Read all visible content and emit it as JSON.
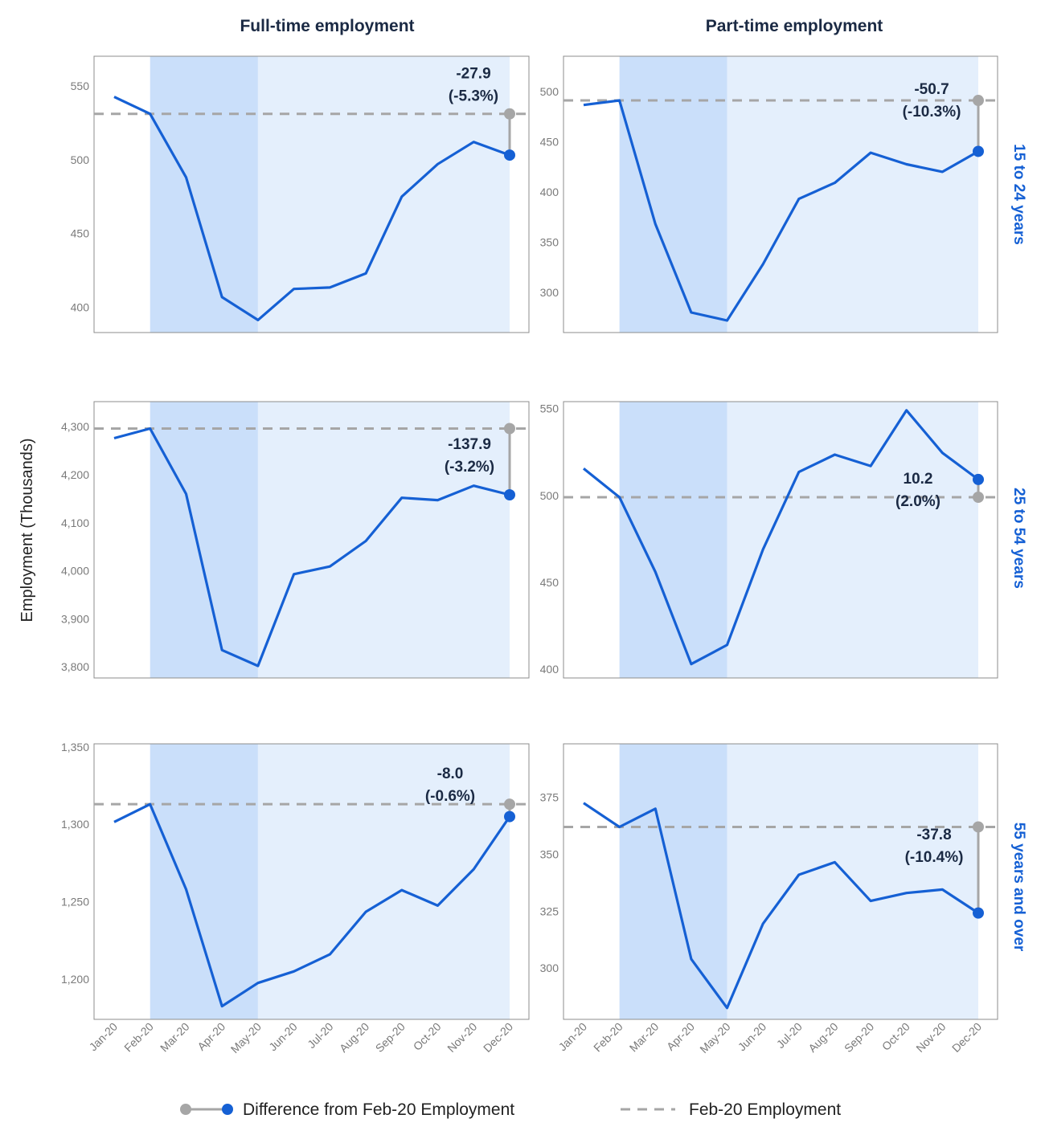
{
  "colors": {
    "line": "#1560d4",
    "shade_dark": "#cadffa",
    "shade_light": "#e4effc",
    "baseline": "#a6a6a6",
    "grey_dot": "#a6a6a6",
    "title": "#1b2a44",
    "row_title": "#1560d4"
  },
  "layout_text": {
    "ylabel": "Employment (Thousands)",
    "col_titles": [
      "Full-time employment",
      "Part-time employment"
    ],
    "row_titles": [
      "15 to 24 years",
      "25 to 54 years",
      "55 years and over"
    ]
  },
  "legend": {
    "diff_label": "Difference from Feb-20 Employment",
    "base_label": "Feb-20 Employment"
  },
  "chart_data": [
    {
      "type": "line",
      "panel": "Full-time employment / 15 to 24 years",
      "x": [
        "Jan-20",
        "Feb-20",
        "Mar-20",
        "Apr-20",
        "May-20",
        "Jun-20",
        "Jul-20",
        "Aug-20",
        "Sep-20",
        "Oct-20",
        "Nov-20",
        "Dec-20"
      ],
      "values": [
        542.5,
        531.0,
        488.0,
        407.0,
        391.5,
        412.5,
        413.5,
        423.0,
        475.0,
        497.0,
        512.0,
        503.1
      ],
      "baseline": 531.0,
      "ylim": [
        383,
        570
      ],
      "yticks": [
        400,
        450,
        500,
        550
      ],
      "ytick_labels": [
        "400",
        "450",
        "500",
        "550"
      ],
      "annotation": [
        "-27.9",
        "(-5.3%)"
      ]
    },
    {
      "type": "line",
      "panel": "Part-time employment / 15 to 24 years",
      "x": [
        "Jan-20",
        "Feb-20",
        "Mar-20",
        "Apr-20",
        "May-20",
        "Jun-20",
        "Jul-20",
        "Aug-20",
        "Sep-20",
        "Oct-20",
        "Nov-20",
        "Dec-20"
      ],
      "values": [
        486.5,
        491.0,
        368.0,
        280.0,
        272.0,
        328.0,
        393.0,
        409.0,
        439.0,
        427.5,
        420.0,
        440.3
      ],
      "baseline": 491.0,
      "ylim": [
        260,
        535
      ],
      "yticks": [
        300,
        350,
        400,
        450,
        500
      ],
      "ytick_labels": [
        "300",
        "350",
        "400",
        "450",
        "500"
      ],
      "annotation": [
        "-50.7",
        "(-10.3%)"
      ]
    },
    {
      "type": "line",
      "panel": "Full-time employment / 25 to 54 years",
      "x": [
        "Jan-20",
        "Feb-20",
        "Mar-20",
        "Apr-20",
        "May-20",
        "Jun-20",
        "Jul-20",
        "Aug-20",
        "Sep-20",
        "Oct-20",
        "Nov-20",
        "Dec-20"
      ],
      "values": [
        4276,
        4296,
        4160,
        3835,
        3802,
        3993,
        4009,
        4062,
        4152,
        4147,
        4177,
        4158.1
      ],
      "baseline": 4296,
      "ylim": [
        3777,
        4352
      ],
      "yticks": [
        3800,
        3900,
        4000,
        4100,
        4200,
        4300
      ],
      "ytick_labels": [
        "3,800",
        "3,900",
        "4,000",
        "4,100",
        "4,200",
        "4,300"
      ],
      "annotation": [
        "-137.9",
        "(-3.2%)"
      ]
    },
    {
      "type": "line",
      "panel": "Part-time employment / 25 to 54 years",
      "x": [
        "Jan-20",
        "Feb-20",
        "Mar-20",
        "Apr-20",
        "May-20",
        "Jun-20",
        "Jul-20",
        "Aug-20",
        "Sep-20",
        "Oct-20",
        "Nov-20",
        "Dec-20"
      ],
      "values": [
        515.5,
        499.0,
        456.0,
        403.0,
        414.0,
        469.0,
        513.5,
        523.5,
        517.0,
        549.0,
        524.5,
        509.2
      ],
      "baseline": 499.0,
      "ylim": [
        395,
        554
      ],
      "yticks": [
        400,
        450,
        500,
        550
      ],
      "ytick_labels": [
        "400",
        "450",
        "500",
        "550"
      ],
      "annotation": [
        "10.2",
        "(2.0%)"
      ]
    },
    {
      "type": "line",
      "panel": "Full-time employment / 55 years and over",
      "x": [
        "Jan-20",
        "Feb-20",
        "Mar-20",
        "Apr-20",
        "May-20",
        "Jun-20",
        "Jul-20",
        "Aug-20",
        "Sep-20",
        "Oct-20",
        "Nov-20",
        "Dec-20"
      ],
      "values": [
        1301.5,
        1313.0,
        1258.0,
        1182.5,
        1197.5,
        1205.0,
        1216.0,
        1243.5,
        1257.5,
        1247.5,
        1271.0,
        1305.0
      ],
      "baseline": 1313.0,
      "ylim": [
        1174,
        1352
      ],
      "yticks": [
        1200,
        1250,
        1300,
        1350
      ],
      "ytick_labels": [
        "1,200",
        "1,250",
        "1,300",
        "1,350"
      ],
      "annotation": [
        "-8.0",
        "(-0.6%)"
      ]
    },
    {
      "type": "line",
      "panel": "Part-time employment / 55 years and over",
      "x": [
        "Jan-20",
        "Feb-20",
        "Mar-20",
        "Apr-20",
        "May-20",
        "Jun-20",
        "Jul-20",
        "Aug-20",
        "Sep-20",
        "Oct-20",
        "Nov-20",
        "Dec-20"
      ],
      "values": [
        372.5,
        362.0,
        370.0,
        304.0,
        282.5,
        319.5,
        341.0,
        346.5,
        329.5,
        333.0,
        334.5,
        324.2
      ],
      "baseline": 362.0,
      "ylim": [
        277.5,
        398.5
      ],
      "yticks": [
        300,
        325,
        350,
        375
      ],
      "ytick_labels": [
        "300",
        "325",
        "350",
        "375"
      ],
      "annotation": [
        "-37.8",
        "(-10.4%)"
      ]
    }
  ]
}
